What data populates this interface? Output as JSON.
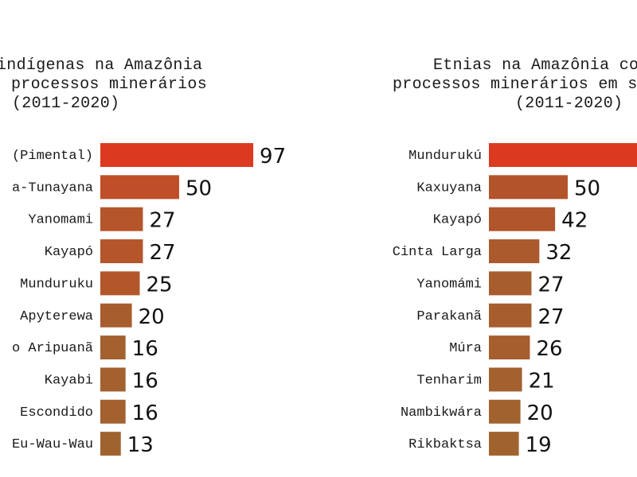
{
  "chart_data": [
    {
      "type": "bar",
      "orientation": "horizontal",
      "title": [
        "indígenas na Amazônia",
        "processos minerários",
        "(2011-2020)"
      ],
      "categories": [
        "(Pimental)",
        "a-Tunayana",
        "Yanomami",
        "Kayapó",
        "Munduruku",
        "Apyterewa",
        "o Aripuanã",
        "Kayabi",
        "Escondido",
        "Eu-Wau-Wau"
      ],
      "values": [
        97,
        50,
        27,
        27,
        25,
        20,
        16,
        16,
        16,
        13
      ],
      "colors": [
        "#dc3a20",
        "#c04e28",
        "#b5552b",
        "#b5552b",
        "#b3572b",
        "#a85d2e",
        "#a2612f",
        "#a2612f",
        "#a2612f",
        "#9f6330"
      ],
      "xlabel": "",
      "ylabel": "",
      "grid": false
    },
    {
      "type": "bar",
      "orientation": "horizontal",
      "title": [
        "Etnias na Amazônia co",
        "processos minerários em s",
        "(2011-2020)"
      ],
      "categories": [
        "Mundurukú",
        "Kaxuyana",
        "Kayapó",
        "Cinta Larga",
        "Yanomámi",
        "Parakanã",
        "Múra",
        "Tenharim",
        "Nambikwára",
        "Rikbaktsa"
      ],
      "values": [
        null,
        50,
        42,
        32,
        27,
        27,
        26,
        21,
        20,
        19
      ],
      "colors": [
        "#dc3a20",
        "#b3532b",
        "#b0552c",
        "#aa5a2d",
        "#a75d2e",
        "#a75d2e",
        "#a65e2e",
        "#a2612f",
        "#a1622f",
        "#a0622f"
      ],
      "xlabel": "",
      "ylabel": "",
      "grid": false
    }
  ]
}
